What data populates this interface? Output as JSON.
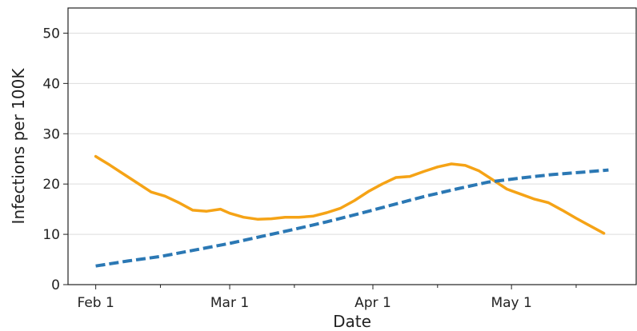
{
  "chart_data": {
    "type": "line",
    "title": "",
    "xlabel": "Date",
    "ylabel": "Infections per 100K",
    "xlim": [
      "2020-01-26",
      "2020-05-28"
    ],
    "ylim": [
      0,
      55
    ],
    "yticks": [
      0,
      10,
      20,
      30,
      40,
      50
    ],
    "xticks": [
      {
        "date": "2020-02-01",
        "label": "Feb 1"
      },
      {
        "date": "2020-03-01",
        "label": "Mar 1"
      },
      {
        "date": "2020-04-01",
        "label": "Apr 1"
      },
      {
        "date": "2020-05-01",
        "label": "May 1"
      }
    ],
    "minor_xticks": [
      "2020-02-15",
      "2020-03-15",
      "2020-04-15",
      "2020-05-15"
    ],
    "grid": "horizontal",
    "legend": "none",
    "series": [
      {
        "color": "#f5a316",
        "style": "solid",
        "x": [
          "2020-02-01",
          "2020-02-04",
          "2020-02-07",
          "2020-02-10",
          "2020-02-13",
          "2020-02-16",
          "2020-02-19",
          "2020-02-22",
          "2020-02-25",
          "2020-02-28",
          "2020-03-01",
          "2020-03-04",
          "2020-03-07",
          "2020-03-10",
          "2020-03-13",
          "2020-03-16",
          "2020-03-19",
          "2020-03-22",
          "2020-03-25",
          "2020-03-28",
          "2020-03-31",
          "2020-04-03",
          "2020-04-06",
          "2020-04-09",
          "2020-04-12",
          "2020-04-15",
          "2020-04-18",
          "2020-04-21",
          "2020-04-24",
          "2020-04-27",
          "2020-04-30",
          "2020-05-03",
          "2020-05-06",
          "2020-05-09",
          "2020-05-12",
          "2020-05-15",
          "2020-05-18",
          "2020-05-21"
        ],
        "values": [
          25.5,
          23.8,
          22.0,
          20.2,
          18.4,
          17.6,
          16.3,
          14.8,
          14.6,
          15.0,
          14.2,
          13.4,
          13.0,
          13.1,
          13.4,
          13.4,
          13.6,
          14.3,
          15.2,
          16.7,
          18.5,
          20.0,
          21.3,
          21.5,
          22.5,
          23.4,
          24.0,
          23.7,
          22.6,
          20.8,
          19.0,
          18.0,
          17.0,
          16.3,
          14.8,
          13.2,
          11.7,
          10.2
        ]
      },
      {
        "color": "#2b78b4",
        "style": "dashed",
        "x": [
          "2020-02-01",
          "2020-02-08",
          "2020-02-15",
          "2020-02-22",
          "2020-03-01",
          "2020-03-08",
          "2020-03-15",
          "2020-03-22",
          "2020-03-29",
          "2020-04-05",
          "2020-04-12",
          "2020-04-19",
          "2020-04-26",
          "2020-05-03",
          "2020-05-10",
          "2020-05-17",
          "2020-05-22"
        ],
        "values": [
          3.7,
          4.7,
          5.6,
          6.8,
          8.2,
          9.6,
          11.0,
          12.5,
          14.1,
          15.8,
          17.5,
          19.0,
          20.4,
          21.2,
          21.9,
          22.4,
          22.8
        ]
      }
    ]
  }
}
